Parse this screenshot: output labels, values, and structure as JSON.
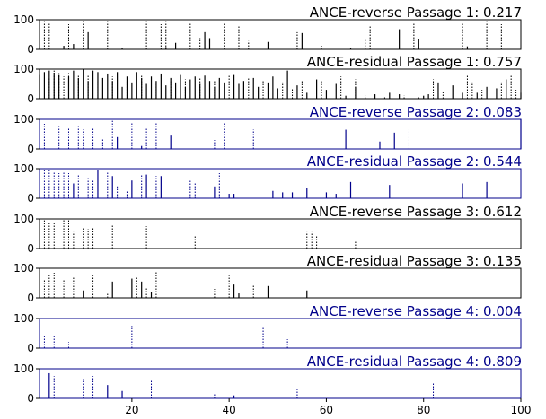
{
  "chart_data": [
    {
      "type": "bar",
      "title": "ANCE-reverse Passage 1: 0.217",
      "color": "#000000",
      "xlim": [
        1,
        100
      ],
      "ylim": [
        0,
        100
      ],
      "yticks": [
        0,
        100
      ],
      "solid": [
        [
          6,
          12
        ],
        [
          8,
          18
        ],
        [
          11,
          58
        ],
        [
          18,
          3
        ],
        [
          27,
          8
        ],
        [
          29,
          22
        ],
        [
          35,
          58
        ],
        [
          36,
          38
        ],
        [
          48,
          25
        ],
        [
          55,
          55
        ],
        [
          65,
          5
        ],
        [
          75,
          68
        ],
        [
          79,
          35
        ],
        [
          89,
          10
        ]
      ],
      "dotted": [
        [
          2,
          95
        ],
        [
          3,
          90
        ],
        [
          7,
          85
        ],
        [
          10,
          100
        ],
        [
          15,
          96
        ],
        [
          23,
          95
        ],
        [
          26,
          85
        ],
        [
          27,
          95
        ],
        [
          32,
          90
        ],
        [
          34,
          38
        ],
        [
          39,
          88
        ],
        [
          42,
          78
        ],
        [
          44,
          28
        ],
        [
          54,
          58
        ],
        [
          59,
          12
        ],
        [
          68,
          32
        ],
        [
          69,
          80
        ],
        [
          78,
          90
        ],
        [
          88,
          90
        ],
        [
          93,
          95
        ],
        [
          96,
          85
        ]
      ]
    },
    {
      "type": "bar",
      "title": "ANCE-residual Passage 1: 0.757",
      "color": "#000000",
      "xlim": [
        1,
        100
      ],
      "ylim": [
        0,
        100
      ],
      "yticks": [
        0,
        100
      ],
      "solid": [
        [
          1,
          80
        ],
        [
          2,
          90
        ],
        [
          3,
          95
        ],
        [
          4,
          88
        ],
        [
          5,
          80
        ],
        [
          7,
          75
        ],
        [
          8,
          95
        ],
        [
          9,
          70
        ],
        [
          10,
          100
        ],
        [
          11,
          60
        ],
        [
          12,
          95
        ],
        [
          13,
          90
        ],
        [
          14,
          70
        ],
        [
          15,
          85
        ],
        [
          16,
          60
        ],
        [
          17,
          90
        ],
        [
          18,
          40
        ],
        [
          19,
          75
        ],
        [
          20,
          55
        ],
        [
          21,
          90
        ],
        [
          22,
          70
        ],
        [
          23,
          50
        ],
        [
          24,
          75
        ],
        [
          25,
          60
        ],
        [
          26,
          85
        ],
        [
          27,
          45
        ],
        [
          28,
          70
        ],
        [
          29,
          55
        ],
        [
          30,
          80
        ],
        [
          31,
          40
        ],
        [
          32,
          65
        ],
        [
          33,
          75
        ],
        [
          34,
          50
        ],
        [
          35,
          78
        ],
        [
          36,
          60
        ],
        [
          37,
          40
        ],
        [
          38,
          70
        ],
        [
          39,
          55
        ],
        [
          41,
          80
        ],
        [
          42,
          50
        ],
        [
          43,
          60
        ],
        [
          45,
          70
        ],
        [
          46,
          40
        ],
        [
          48,
          55
        ],
        [
          49,
          75
        ],
        [
          50,
          35
        ],
        [
          52,
          95
        ],
        [
          54,
          45
        ],
        [
          56,
          20
        ],
        [
          58,
          65
        ],
        [
          60,
          30
        ],
        [
          62,
          50
        ],
        [
          64,
          10
        ],
        [
          66,
          40
        ],
        [
          70,
          15
        ],
        [
          73,
          20
        ],
        [
          75,
          15
        ],
        [
          80,
          10
        ],
        [
          81,
          15
        ],
        [
          83,
          55
        ],
        [
          86,
          45
        ],
        [
          88,
          20
        ],
        [
          91,
          20
        ],
        [
          93,
          40
        ],
        [
          95,
          35
        ],
        [
          97,
          65
        ],
        [
          100,
          20
        ]
      ],
      "dotted": [
        [
          3,
          70
        ],
        [
          4,
          95
        ],
        [
          5,
          90
        ],
        [
          6,
          75
        ],
        [
          7,
          90
        ],
        [
          9,
          85
        ],
        [
          11,
          80
        ],
        [
          13,
          65
        ],
        [
          16,
          75
        ],
        [
          19,
          60
        ],
        [
          22,
          85
        ],
        [
          25,
          50
        ],
        [
          28,
          65
        ],
        [
          31,
          65
        ],
        [
          34,
          70
        ],
        [
          37,
          60
        ],
        [
          40,
          85
        ],
        [
          44,
          70
        ],
        [
          47,
          60
        ],
        [
          51,
          55
        ],
        [
          53,
          35
        ],
        [
          55,
          60
        ],
        [
          59,
          60
        ],
        [
          63,
          75
        ],
        [
          66,
          65
        ],
        [
          68,
          10
        ],
        [
          72,
          8
        ],
        [
          76,
          10
        ],
        [
          79,
          5
        ],
        [
          82,
          65
        ],
        [
          84,
          25
        ],
        [
          89,
          85
        ],
        [
          90,
          55
        ],
        [
          92,
          30
        ],
        [
          96,
          55
        ],
        [
          98,
          85
        ],
        [
          99,
          30
        ]
      ]
    },
    {
      "type": "bar",
      "title": "ANCE-reverse Passage 2: 0.083",
      "color": "#00008B",
      "xlim": [
        1,
        100
      ],
      "ylim": [
        0,
        100
      ],
      "yticks": [
        0,
        100
      ],
      "solid": [
        [
          17,
          40
        ],
        [
          22,
          10
        ],
        [
          28,
          45
        ],
        [
          64,
          65
        ],
        [
          71,
          25
        ],
        [
          74,
          55
        ],
        [
          100,
          100
        ]
      ],
      "dotted": [
        [
          2,
          85
        ],
        [
          5,
          80
        ],
        [
          7,
          75
        ],
        [
          9,
          80
        ],
        [
          10,
          65
        ],
        [
          12,
          70
        ],
        [
          14,
          35
        ],
        [
          16,
          95
        ],
        [
          20,
          90
        ],
        [
          23,
          75
        ],
        [
          25,
          90
        ],
        [
          37,
          30
        ],
        [
          39,
          90
        ],
        [
          45,
          65
        ],
        [
          77,
          65
        ]
      ]
    },
    {
      "type": "bar",
      "title": "ANCE-residual Passage 2: 0.544",
      "color": "#00008B",
      "xlim": [
        1,
        100
      ],
      "ylim": [
        0,
        100
      ],
      "yticks": [
        0,
        100
      ],
      "solid": [
        [
          8,
          50
        ],
        [
          13,
          95
        ],
        [
          16,
          75
        ],
        [
          20,
          60
        ],
        [
          23,
          80
        ],
        [
          26,
          75
        ],
        [
          37,
          40
        ],
        [
          40,
          15
        ],
        [
          41,
          15
        ],
        [
          49,
          25
        ],
        [
          51,
          20
        ],
        [
          53,
          20
        ],
        [
          56,
          35
        ],
        [
          60,
          20
        ],
        [
          62,
          15
        ],
        [
          65,
          55
        ],
        [
          73,
          45
        ],
        [
          88,
          50
        ],
        [
          93,
          55
        ]
      ],
      "dotted": [
        [
          2,
          100
        ],
        [
          3,
          95
        ],
        [
          4,
          90
        ],
        [
          5,
          85
        ],
        [
          6,
          90
        ],
        [
          7,
          85
        ],
        [
          9,
          80
        ],
        [
          11,
          70
        ],
        [
          12,
          65
        ],
        [
          15,
          90
        ],
        [
          17,
          40
        ],
        [
          19,
          25
        ],
        [
          22,
          80
        ],
        [
          25,
          75
        ],
        [
          32,
          60
        ],
        [
          33,
          50
        ],
        [
          38,
          85
        ],
        [
          41,
          10
        ]
      ]
    },
    {
      "type": "bar",
      "title": "ANCE-reverse Passage 3: 0.612",
      "color": "#000000",
      "xlim": [
        1,
        100
      ],
      "ylim": [
        0,
        100
      ],
      "yticks": [
        0,
        100
      ],
      "solid": [],
      "dotted": [
        [
          2,
          95
        ],
        [
          3,
          90
        ],
        [
          4,
          85
        ],
        [
          6,
          100
        ],
        [
          7,
          95
        ],
        [
          8,
          55
        ],
        [
          10,
          70
        ],
        [
          11,
          65
        ],
        [
          12,
          70
        ],
        [
          16,
          80
        ],
        [
          23,
          75
        ],
        [
          33,
          45
        ],
        [
          56,
          55
        ],
        [
          57,
          55
        ],
        [
          58,
          45
        ],
        [
          66,
          25
        ]
      ]
    },
    {
      "type": "bar",
      "title": "ANCE-residual Passage 3: 0.135",
      "color": "#000000",
      "xlim": [
        1,
        100
      ],
      "ylim": [
        0,
        100
      ],
      "yticks": [
        0,
        100
      ],
      "solid": [
        [
          10,
          25
        ],
        [
          16,
          55
        ],
        [
          20,
          65
        ],
        [
          22,
          55
        ],
        [
          24,
          20
        ],
        [
          41,
          45
        ],
        [
          42,
          15
        ],
        [
          48,
          40
        ],
        [
          56,
          25
        ]
      ],
      "dotted": [
        [
          2,
          60
        ],
        [
          3,
          80
        ],
        [
          4,
          85
        ],
        [
          6,
          60
        ],
        [
          8,
          70
        ],
        [
          12,
          75
        ],
        [
          15,
          20
        ],
        [
          21,
          70
        ],
        [
          23,
          35
        ],
        [
          25,
          90
        ],
        [
          37,
          30
        ],
        [
          40,
          75
        ],
        [
          45,
          45
        ]
      ]
    },
    {
      "type": "bar",
      "title": "ANCE-reverse Passage 4: 0.004",
      "color": "#00008B",
      "xlim": [
        1,
        100
      ],
      "ylim": [
        0,
        100
      ],
      "yticks": [
        0,
        100
      ],
      "solid": [],
      "dotted": [
        [
          2,
          45
        ],
        [
          4,
          45
        ],
        [
          7,
          20
        ],
        [
          20,
          75
        ],
        [
          47,
          70
        ],
        [
          52,
          30
        ]
      ]
    },
    {
      "type": "bar",
      "title": "ANCE-residual Passage 4: 0.809",
      "color": "#00008B",
      "xlim": [
        1,
        100
      ],
      "ylim": [
        0,
        100
      ],
      "yticks": [
        0,
        100
      ],
      "xticks": [
        20,
        40,
        60,
        80,
        100
      ],
      "solid": [
        [
          3,
          85
        ],
        [
          15,
          45
        ],
        [
          18,
          25
        ],
        [
          41,
          10
        ]
      ],
      "dotted": [
        [
          4,
          75
        ],
        [
          10,
          65
        ],
        [
          12,
          75
        ],
        [
          24,
          60
        ],
        [
          37,
          15
        ],
        [
          54,
          30
        ],
        [
          82,
          50
        ]
      ]
    }
  ]
}
